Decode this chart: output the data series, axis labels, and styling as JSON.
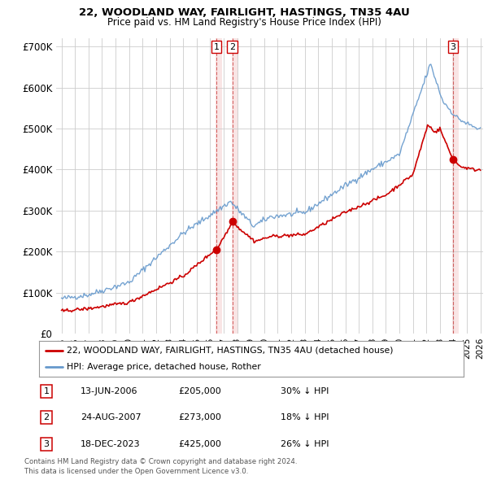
{
  "title": "22, WOODLAND WAY, FAIRLIGHT, HASTINGS, TN35 4AU",
  "subtitle": "Price paid vs. HM Land Registry's House Price Index (HPI)",
  "ylabel_ticks": [
    "£0",
    "£100K",
    "£200K",
    "£300K",
    "£400K",
    "£500K",
    "£600K",
    "£700K"
  ],
  "ytick_vals": [
    0,
    100000,
    200000,
    300000,
    400000,
    500000,
    600000,
    700000
  ],
  "ylim": [
    0,
    720000
  ],
  "xlim_start": 1994.6,
  "xlim_end": 2026.2,
  "legend_line1": "22, WOODLAND WAY, FAIRLIGHT, HASTINGS, TN35 4AU (detached house)",
  "legend_line2": "HPI: Average price, detached house, Rother",
  "transaction1_date": "13-JUN-2006",
  "transaction1_price": "£205,000",
  "transaction1_hpi": "30% ↓ HPI",
  "transaction1_x": 2006.45,
  "transaction1_y": 205000,
  "transaction2_date": "24-AUG-2007",
  "transaction2_price": "£273,000",
  "transaction2_hpi": "18% ↓ HPI",
  "transaction2_x": 2007.65,
  "transaction2_y": 273000,
  "transaction3_date": "18-DEC-2023",
  "transaction3_price": "£425,000",
  "transaction3_hpi": "26% ↓ HPI",
  "transaction3_x": 2023.97,
  "transaction3_y": 425000,
  "footer_line1": "Contains HM Land Registry data © Crown copyright and database right 2024.",
  "footer_line2": "This data is licensed under the Open Government Licence v3.0.",
  "house_color": "#cc0000",
  "hpi_color": "#6699cc",
  "background_color": "#ffffff",
  "grid_color": "#cccccc",
  "shade_color": "#f5cccc"
}
